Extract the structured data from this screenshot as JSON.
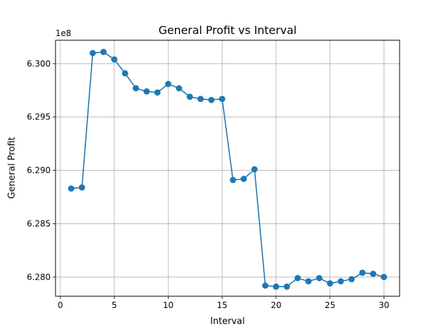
{
  "chart_data": {
    "type": "line",
    "title": "General Profit vs Interval",
    "xlabel": "Interval",
    "ylabel": "General Profit",
    "offset_label": "1e8",
    "xlim": [
      -0.45,
      31.45
    ],
    "ylim": [
      6.2782,
      6.3022
    ],
    "x_ticks": [
      0,
      5,
      10,
      15,
      20,
      25,
      30
    ],
    "x_tick_labels": [
      "0",
      "5",
      "10",
      "15",
      "20",
      "25",
      "30"
    ],
    "y_ticks": [
      6.28,
      6.285,
      6.29,
      6.295,
      6.3
    ],
    "y_tick_labels": [
      "6.280",
      "6.285",
      "6.290",
      "6.295",
      "6.300"
    ],
    "grid": true,
    "color": "#1f77b4",
    "marker": "circle",
    "x": [
      1,
      2,
      3,
      4,
      5,
      6,
      7,
      8,
      9,
      10,
      11,
      12,
      13,
      14,
      15,
      16,
      17,
      18,
      19,
      20,
      21,
      22,
      23,
      24,
      25,
      26,
      27,
      28,
      29,
      30
    ],
    "y": [
      6.2883,
      6.2884,
      6.301,
      6.3011,
      6.3004,
      6.2991,
      6.2977,
      6.2974,
      6.2973,
      6.2981,
      6.2977,
      6.2969,
      6.2967,
      6.2966,
      6.2967,
      6.2891,
      6.2892,
      6.2901,
      6.2792,
      6.2791,
      6.2791,
      6.2799,
      6.2796,
      6.2799,
      6.2794,
      6.2796,
      6.2798,
      6.2804,
      6.2803,
      6.28
    ]
  }
}
